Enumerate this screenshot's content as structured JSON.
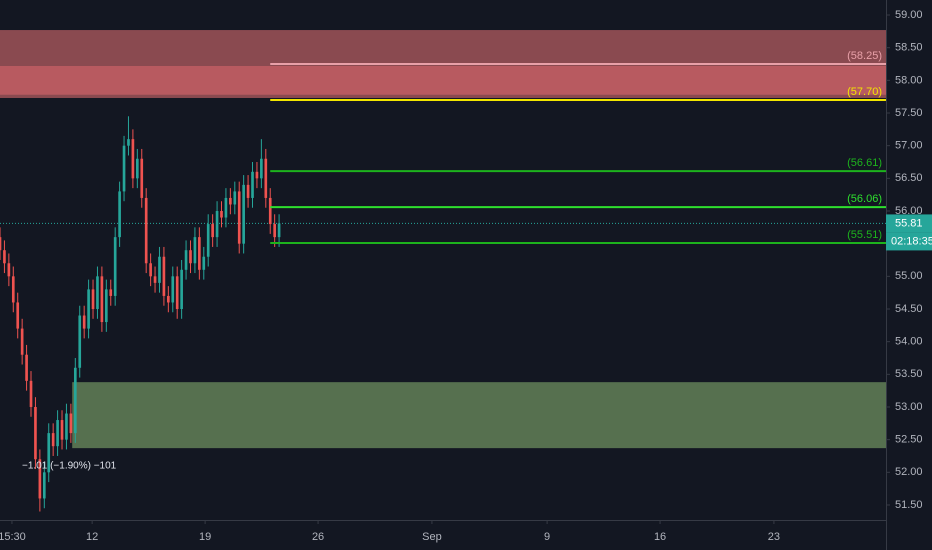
{
  "chart_data": {
    "type": "candlestick",
    "x": [
      0,
      1,
      2,
      3,
      4,
      5,
      6,
      7,
      8,
      9,
      10,
      11,
      12,
      13,
      14,
      15,
      16,
      17,
      18,
      19,
      20,
      21,
      22,
      23,
      24,
      25,
      26,
      27,
      28,
      29,
      30,
      31,
      32,
      33,
      34,
      35,
      36,
      37,
      38,
      39,
      40,
      41,
      42,
      43,
      44,
      45,
      46,
      47,
      48,
      49,
      50,
      51,
      52,
      53,
      54,
      55,
      56,
      57,
      58,
      59,
      60,
      61,
      62,
      63
    ],
    "open": [
      55.6,
      55.4,
      55.2,
      55.0,
      54.6,
      54.2,
      53.8,
      53.4,
      53.0,
      52.2,
      51.6,
      52.0,
      52.6,
      52.4,
      52.8,
      52.5,
      52.9,
      52.6,
      53.6,
      54.4,
      54.2,
      54.8,
      54.5,
      55.0,
      54.3,
      54.8,
      54.7,
      55.6,
      56.3,
      57.0,
      57.1,
      56.5,
      56.8,
      56.2,
      55.2,
      55.0,
      54.9,
      55.3,
      54.7,
      54.6,
      55.0,
      54.5,
      55.1,
      55.4,
      55.2,
      55.6,
      55.1,
      55.3,
      55.8,
      55.6,
      56.0,
      55.9,
      56.2,
      56.1,
      56.3,
      55.5,
      56.4,
      56.2,
      56.6,
      56.5,
      56.8,
      56.2,
      55.8,
      55.6
    ],
    "high": [
      55.75,
      55.55,
      55.35,
      55.15,
      54.75,
      54.35,
      53.95,
      53.55,
      53.15,
      52.35,
      52.15,
      52.75,
      52.75,
      52.95,
      52.95,
      53.05,
      53.05,
      53.75,
      54.55,
      54.55,
      54.95,
      54.95,
      55.15,
      55.15,
      54.95,
      54.95,
      55.75,
      56.45,
      57.15,
      57.45,
      57.25,
      56.95,
      56.95,
      56.35,
      55.35,
      55.15,
      55.45,
      55.45,
      54.85,
      55.15,
      55.15,
      55.25,
      55.55,
      55.55,
      55.75,
      55.75,
      55.45,
      55.95,
      55.95,
      56.15,
      56.15,
      56.35,
      56.35,
      56.45,
      56.45,
      56.55,
      56.55,
      56.75,
      56.75,
      57.1,
      56.95,
      56.35,
      55.95,
      55.95
    ],
    "low": [
      55.25,
      55.05,
      54.85,
      54.45,
      54.05,
      53.65,
      53.25,
      52.85,
      52.05,
      51.4,
      51.45,
      51.85,
      52.25,
      52.25,
      52.35,
      52.35,
      52.45,
      52.45,
      53.45,
      54.05,
      54.05,
      54.35,
      54.35,
      54.15,
      54.15,
      54.55,
      54.55,
      55.45,
      56.15,
      56.85,
      56.35,
      56.35,
      56.05,
      55.05,
      54.85,
      54.75,
      54.75,
      54.55,
      54.45,
      54.45,
      54.35,
      54.35,
      54.95,
      55.05,
      55.05,
      54.95,
      54.95,
      55.15,
      55.45,
      55.45,
      55.75,
      55.75,
      55.95,
      55.95,
      55.35,
      55.35,
      56.05,
      56.05,
      56.35,
      56.35,
      56.05,
      55.65,
      55.45,
      55.45
    ],
    "close": [
      55.4,
      55.2,
      55.0,
      54.6,
      54.2,
      53.8,
      53.4,
      53.0,
      52.2,
      51.6,
      52.0,
      52.6,
      52.4,
      52.8,
      52.5,
      52.9,
      52.6,
      53.6,
      54.4,
      54.2,
      54.8,
      54.5,
      55.0,
      54.3,
      54.8,
      54.7,
      55.6,
      56.3,
      57.0,
      57.1,
      56.5,
      56.8,
      56.2,
      55.2,
      55.0,
      54.9,
      55.3,
      54.7,
      54.6,
      55.0,
      54.5,
      55.1,
      55.4,
      55.2,
      55.6,
      55.1,
      55.3,
      55.8,
      55.6,
      56.0,
      55.9,
      56.2,
      56.1,
      56.3,
      55.5,
      56.4,
      56.2,
      56.6,
      56.5,
      56.8,
      56.2,
      55.8,
      55.6,
      55.81
    ],
    "up_color": "#26a69a",
    "down_color": "#ef5350",
    "xlim": [
      0,
      200
    ],
    "ylim": [
      51.27,
      59.23
    ],
    "xticks": [
      {
        "value": 2.7,
        "label": "15:30"
      },
      {
        "value": 20.8,
        "label": "12"
      },
      {
        "value": 46.3,
        "label": "19"
      },
      {
        "value": 71.8,
        "label": "26"
      },
      {
        "value": 97.5,
        "label": "Sep"
      },
      {
        "value": 123.5,
        "label": "9"
      },
      {
        "value": 149,
        "label": "16"
      },
      {
        "value": 174.7,
        "label": "23"
      }
    ],
    "yticks": [
      {
        "value": 51.5,
        "label": "51.50"
      },
      {
        "value": 52,
        "label": "52.00"
      },
      {
        "value": 52.5,
        "label": "52.50"
      },
      {
        "value": 53,
        "label": "53.00"
      },
      {
        "value": 53.5,
        "label": "53.50"
      },
      {
        "value": 54,
        "label": "54.00"
      },
      {
        "value": 54.5,
        "label": "54.50"
      },
      {
        "value": 55,
        "label": "55.00"
      },
      {
        "value": 55.5,
        "label": "55.50"
      },
      {
        "value": 56,
        "label": "56.00"
      },
      {
        "value": 56.5,
        "label": "56.50"
      },
      {
        "value": 57,
        "label": "57.00"
      },
      {
        "value": 57.5,
        "label": "57.50"
      },
      {
        "value": 58,
        "label": "58.00"
      },
      {
        "value": 58.5,
        "label": "58.50"
      },
      {
        "value": 59,
        "label": "59.00"
      }
    ],
    "zones": [
      {
        "from": 57.73,
        "to": 58.77,
        "start": 0,
        "color": "#8a4a50"
      },
      {
        "from": 57.78,
        "to": 58.22,
        "start": 0,
        "color": "#b85a60"
      },
      {
        "from": 52.37,
        "to": 53.38,
        "start": 16.3,
        "color": "#56704f"
      }
    ],
    "levels": [
      {
        "value": 58.25,
        "label": "(58.25)",
        "color": "#e8a0a8",
        "start": 61
      },
      {
        "value": 57.7,
        "label": "(57.70)",
        "color": "#f2e600",
        "start": 61
      },
      {
        "value": 56.61,
        "label": "(56.61)",
        "color": "#1db31d",
        "start": 61
      },
      {
        "value": 56.06,
        "label": "(56.06)",
        "color": "#2ee02e",
        "start": 61
      },
      {
        "value": 55.51,
        "label": "(55.51)",
        "color": "#1db31d",
        "start": 61
      }
    ],
    "last_price": 55.81,
    "last_price_label": "55.81",
    "countdown": "02:18:35",
    "annotation": "−1.01 (−1.90%) −101"
  }
}
